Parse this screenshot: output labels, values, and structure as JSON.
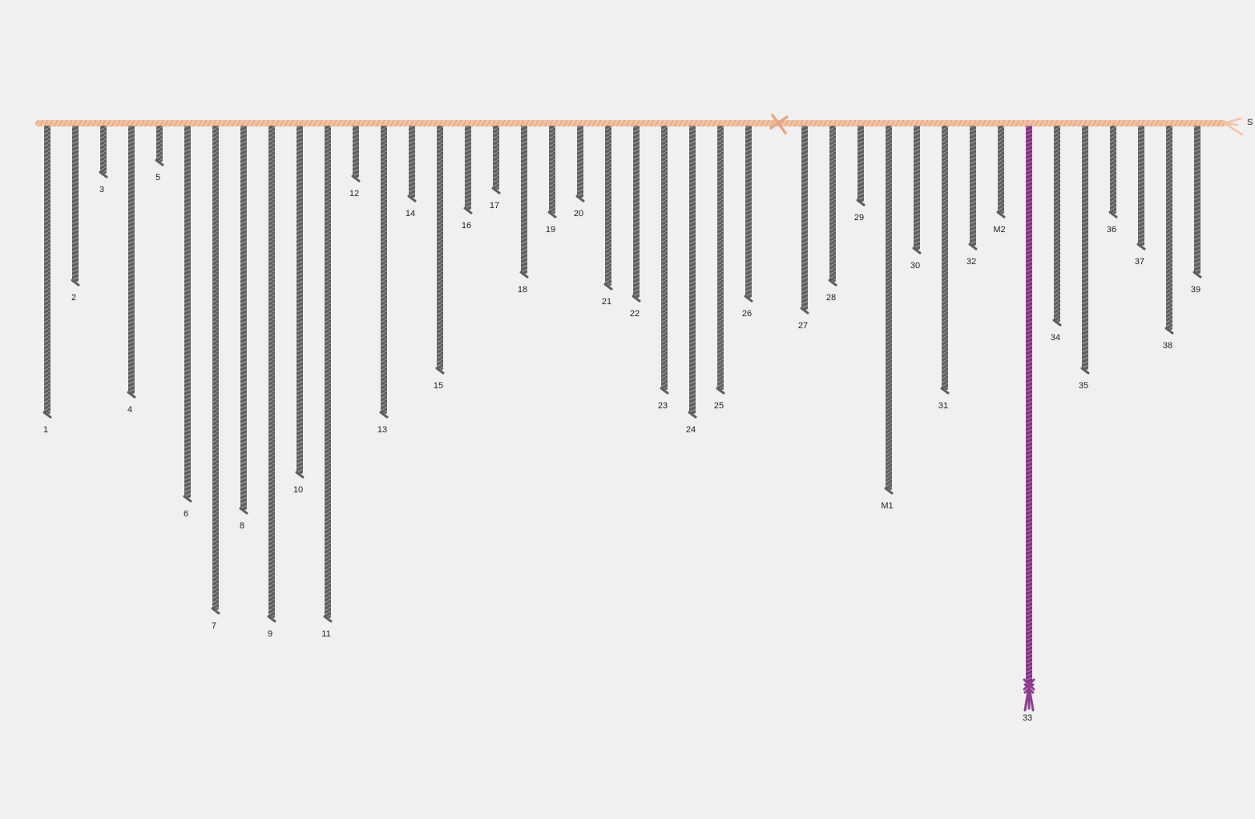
{
  "background_color": "#f0f0f0",
  "primary_cord": {
    "label": "S",
    "color": "#f3c3a4",
    "knot_icon": "cross-knot-icon",
    "end_icon": "frayed-end-icon"
  },
  "pendant_colors": {
    "default": "#6b6b6b",
    "highlight": "#8e3f91"
  },
  "pendants": [
    {
      "label": "1",
      "length": 360
    },
    {
      "label": "2",
      "length": 195
    },
    {
      "label": "3",
      "length": 60
    },
    {
      "label": "4",
      "length": 335
    },
    {
      "label": "5",
      "length": 45
    },
    {
      "label": "6",
      "length": 465
    },
    {
      "label": "7",
      "length": 605
    },
    {
      "label": "8",
      "length": 480
    },
    {
      "label": "9",
      "length": 615
    },
    {
      "label": "10",
      "length": 435
    },
    {
      "label": "11",
      "length": 615
    },
    {
      "label": "12",
      "length": 65
    },
    {
      "label": "13",
      "length": 360
    },
    {
      "label": "14",
      "length": 90
    },
    {
      "label": "15",
      "length": 305
    },
    {
      "label": "16",
      "length": 105
    },
    {
      "label": "17",
      "length": 80
    },
    {
      "label": "18",
      "length": 185
    },
    {
      "label": "19",
      "length": 110
    },
    {
      "label": "20",
      "length": 90
    },
    {
      "label": "21",
      "length": 200
    },
    {
      "label": "22",
      "length": 215
    },
    {
      "label": "23",
      "length": 330
    },
    {
      "label": "24",
      "length": 360
    },
    {
      "label": "25",
      "length": 330
    },
    {
      "label": "26",
      "length": 215
    },
    {
      "label": "27",
      "length": 230
    },
    {
      "label": "28",
      "length": 195
    },
    {
      "label": "29",
      "length": 95
    },
    {
      "label": "M1",
      "length": 455
    },
    {
      "label": "30",
      "length": 155
    },
    {
      "label": "31",
      "length": 330
    },
    {
      "label": "32",
      "length": 150
    },
    {
      "label": "M2",
      "length": 110
    },
    {
      "label": "33",
      "length": 700,
      "highlight": true
    },
    {
      "label": "34",
      "length": 245
    },
    {
      "label": "35",
      "length": 305
    },
    {
      "label": "36",
      "length": 110
    },
    {
      "label": "37",
      "length": 150
    },
    {
      "label": "38",
      "length": 255
    },
    {
      "label": "39",
      "length": 185
    }
  ]
}
